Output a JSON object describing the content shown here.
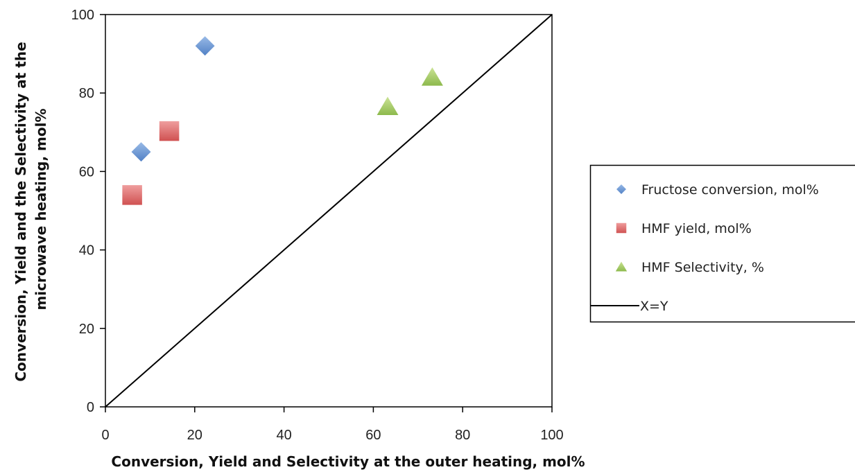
{
  "chart_data": {
    "type": "scatter",
    "title": "",
    "xlabel": "Conversion, Yield and Selectivity at the outer heating, mol%",
    "ylabel_lines": [
      "Conversion, Yield and the Selectivity at the",
      "microwave heating, mol%"
    ],
    "xlim": [
      0,
      100
    ],
    "ylim": [
      0,
      100
    ],
    "xticks": [
      0,
      20,
      40,
      60,
      80,
      100
    ],
    "yticks": [
      0,
      20,
      40,
      60,
      80,
      100
    ],
    "grid": false,
    "legend_position": "right",
    "series": [
      {
        "name": "Fructose conversion, mol%",
        "marker": "diamond",
        "color": "#6a97d4",
        "points": [
          [
            8,
            65
          ],
          [
            22.3,
            92
          ]
        ]
      },
      {
        "name": "HMF yield, mol%",
        "marker": "square",
        "color": "#dc6b6b",
        "points": [
          [
            6,
            54
          ],
          [
            14.3,
            70.3
          ]
        ]
      },
      {
        "name": "HMF Selectivity, %",
        "marker": "triangle",
        "color": "#a6cc63",
        "points": [
          [
            63.2,
            76.5
          ],
          [
            73.2,
            84
          ]
        ]
      },
      {
        "name": "X=Y",
        "marker": "line",
        "color": "#000000",
        "points": [
          [
            0,
            0
          ],
          [
            100,
            100
          ]
        ]
      }
    ]
  }
}
